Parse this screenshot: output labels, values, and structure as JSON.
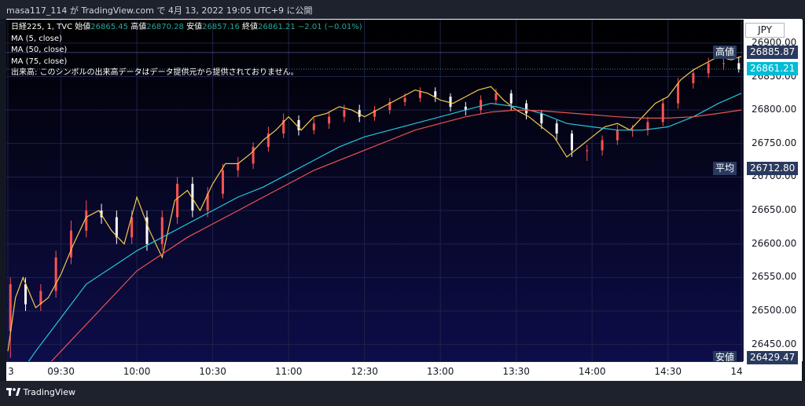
{
  "header": {
    "publish_text": "masa117_114 が TradingView.com で 4月 13, 2022 19:05 UTC+9 に公開"
  },
  "legend": {
    "symbol": "日経225, 1, TVC",
    "open_label": "始値",
    "open_value": "26865.45",
    "high_label": "高値",
    "high_value": "26870.28",
    "low_label": "安値",
    "low_value": "26857.16",
    "close_label": "終値",
    "close_value": "26861.21",
    "change": "−2.01 (−0.01%)",
    "ma1": "MA (5, close)",
    "ma2": "MA (50, close)",
    "ma3": "MA (75, close)",
    "volume_note": "出来高: このシンボルの出来高データはデータ提供元から提供されておりません。"
  },
  "currency": "JPY",
  "price_tags": {
    "high_label": "高値",
    "high_value": "26885.87",
    "last_value": "26861.21",
    "avg_label": "平均",
    "avg_value": "26712.80",
    "low_label": "安値",
    "low_value": "26429.47"
  },
  "colors": {
    "background": "#0d0d4a",
    "up": "#ff5252",
    "down": "#ffffff",
    "ma5": "#f2c94c",
    "ma50": "#26c6da",
    "ma75": "#ef5350",
    "last_tag": "#00bcd4",
    "label_tag": "#2a3a5e"
  },
  "footer": {
    "brand": "TradingView",
    "logo_icon": "tradingview-logo-icon"
  },
  "chart_data": {
    "type": "line",
    "ylim": [
      26425,
      26935
    ],
    "y_ticks": [
      "26900.00",
      "26850.00",
      "26800.00",
      "26750.00",
      "26700.00",
      "26650.00",
      "26600.00",
      "26550.00",
      "26500.00",
      "26450.00"
    ],
    "y_tick_values": [
      26900,
      26850,
      26800,
      26750,
      26700,
      26650,
      26600,
      26550,
      26500,
      26450
    ],
    "x_ticks": [
      "3",
      "09:30",
      "10:00",
      "10:30",
      "11:00",
      "12:30",
      "13:00",
      "13:30",
      "14:00",
      "14:30",
      "14"
    ],
    "x_tick_minutes": [
      9,
      30,
      60,
      90,
      120,
      150,
      180,
      210,
      240,
      270,
      299
    ],
    "xlim": [
      9,
      299
    ],
    "series": [
      {
        "name": "MA (5, close)",
        "color": "#f2c94c",
        "x": [
          9,
          12,
          15,
          20,
          25,
          30,
          35,
          40,
          45,
          50,
          55,
          60,
          65,
          70,
          75,
          80,
          85,
          90,
          95,
          100,
          105,
          110,
          115,
          120,
          125,
          130,
          135,
          140,
          145,
          150,
          155,
          160,
          165,
          170,
          175,
          180,
          185,
          190,
          195,
          200,
          205,
          210,
          215,
          220,
          225,
          230,
          235,
          240,
          245,
          250,
          255,
          260,
          265,
          270,
          275,
          280,
          285,
          290,
          295,
          299
        ],
        "values": [
          26440,
          26520,
          26550,
          26505,
          26520,
          26555,
          26600,
          26640,
          26650,
          26620,
          26600,
          26670,
          26620,
          26580,
          26665,
          26680,
          26650,
          26690,
          26720,
          26720,
          26735,
          26755,
          26770,
          26790,
          26770,
          26790,
          26795,
          26805,
          26800,
          26790,
          26800,
          26810,
          26820,
          26830,
          26825,
          26815,
          26810,
          26820,
          26830,
          26835,
          26815,
          26800,
          26790,
          26775,
          26760,
          26730,
          26745,
          26760,
          26775,
          26780,
          26770,
          26790,
          26810,
          26820,
          26845,
          26860,
          26870,
          26880,
          26875,
          26880
        ]
      },
      {
        "name": "MA (50, close)",
        "color": "#26c6da",
        "x": [
          9,
          20,
          30,
          40,
          50,
          60,
          70,
          80,
          90,
          100,
          110,
          120,
          130,
          140,
          150,
          160,
          170,
          180,
          190,
          200,
          210,
          220,
          230,
          240,
          250,
          260,
          270,
          280,
          290,
          299
        ],
        "values": [
          26380,
          26440,
          26490,
          26540,
          26565,
          26590,
          26610,
          26630,
          26650,
          26670,
          26685,
          26705,
          26725,
          26745,
          26760,
          26770,
          26780,
          26790,
          26800,
          26810,
          26805,
          26795,
          26780,
          26775,
          26770,
          26770,
          26775,
          26790,
          26810,
          26825
        ]
      },
      {
        "name": "MA (75, close)",
        "color": "#ef5350",
        "x": [
          9,
          20,
          30,
          40,
          50,
          60,
          70,
          80,
          90,
          100,
          110,
          120,
          130,
          140,
          150,
          160,
          170,
          180,
          190,
          200,
          210,
          220,
          230,
          240,
          250,
          260,
          270,
          280,
          290,
          299
        ],
        "values": [
          26350,
          26400,
          26440,
          26480,
          26520,
          26560,
          26585,
          26610,
          26630,
          26650,
          26670,
          26690,
          26710,
          26725,
          26740,
          26755,
          26770,
          26780,
          26790,
          26797,
          26800,
          26799,
          26796,
          26793,
          26790,
          26788,
          26788,
          26790,
          26795,
          26800
        ]
      }
    ],
    "candles": {
      "x": [
        10,
        16,
        22,
        28,
        34,
        40,
        46,
        52,
        58,
        64,
        70,
        76,
        82,
        88,
        94,
        100,
        106,
        112,
        118,
        124,
        130,
        136,
        142,
        148,
        154,
        160,
        166,
        172,
        178,
        184,
        190,
        196,
        202,
        208,
        214,
        220,
        226,
        232,
        238,
        244,
        250,
        256,
        262,
        268,
        274,
        280,
        286,
        292,
        298
      ],
      "open": [
        26470,
        26540,
        26510,
        26530,
        26580,
        26620,
        26650,
        26640,
        26610,
        26640,
        26600,
        26640,
        26690,
        26650,
        26675,
        26710,
        26720,
        26745,
        26765,
        26785,
        26770,
        26780,
        26790,
        26800,
        26790,
        26800,
        26812,
        26818,
        26828,
        26820,
        26805,
        26800,
        26815,
        26825,
        26810,
        26795,
        26780,
        26765,
        26740,
        26740,
        26755,
        26770,
        26770,
        26782,
        26810,
        26840,
        26855,
        26870,
        26870
      ],
      "close": [
        26540,
        26510,
        26530,
        26580,
        26620,
        26650,
        26640,
        26610,
        26640,
        26600,
        26640,
        26690,
        26650,
        26675,
        26710,
        26720,
        26745,
        26765,
        26785,
        26770,
        26780,
        26790,
        26800,
        26790,
        26800,
        26812,
        26818,
        26828,
        26820,
        26805,
        26800,
        26815,
        26825,
        26810,
        26795,
        26780,
        26765,
        26740,
        26740,
        26755,
        26770,
        26770,
        26782,
        26810,
        26840,
        26855,
        26870,
        26870,
        26861
      ],
      "high": [
        26550,
        26550,
        26540,
        26590,
        26635,
        26665,
        26660,
        26650,
        26650,
        26650,
        26650,
        26700,
        26700,
        26685,
        26720,
        26730,
        26752,
        26775,
        26795,
        26792,
        26788,
        26798,
        26808,
        26808,
        26806,
        26818,
        26825,
        26834,
        26834,
        26825,
        26812,
        26822,
        26832,
        26830,
        26815,
        26800,
        26785,
        26770,
        26748,
        26762,
        26778,
        26778,
        26790,
        26818,
        26848,
        26862,
        26878,
        26886,
        26880
      ],
      "low": [
        26430,
        26500,
        26500,
        26520,
        26570,
        26610,
        26630,
        26600,
        26600,
        26590,
        26590,
        26630,
        26640,
        26640,
        26668,
        26700,
        26712,
        26738,
        26758,
        26762,
        26764,
        26772,
        26782,
        26782,
        26784,
        26794,
        26806,
        26812,
        26812,
        26798,
        26792,
        26794,
        26808,
        26800,
        26786,
        26772,
        26755,
        26730,
        26724,
        26732,
        26748,
        26760,
        26762,
        26776,
        26802,
        26832,
        26848,
        26860,
        26856
      ]
    }
  }
}
